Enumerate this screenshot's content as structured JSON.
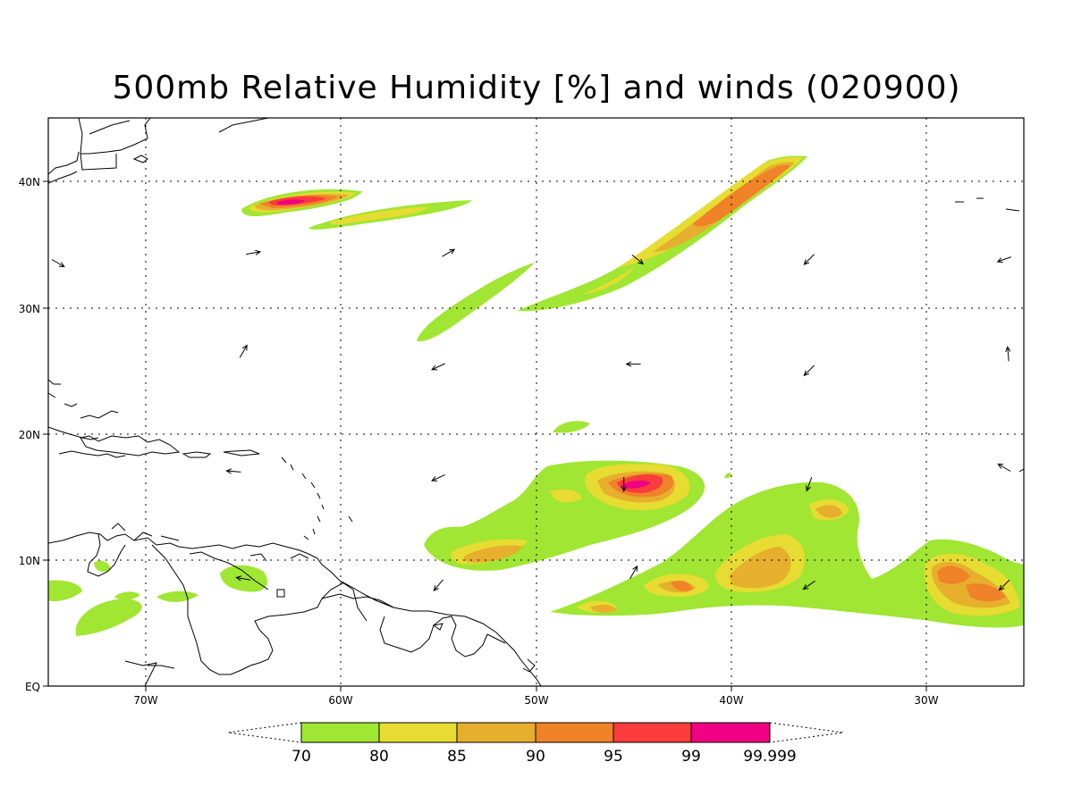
{
  "title": "500mb Relative Humidity [%] and winds (020900)",
  "map": {
    "lat_range": [
      0,
      45
    ],
    "lon_range": [
      -75,
      -25
    ],
    "lat_ticks": [
      {
        "lat": 40,
        "label": "40N"
      },
      {
        "lat": 30,
        "label": "30N"
      },
      {
        "lat": 20,
        "label": "20N"
      },
      {
        "lat": 10,
        "label": "10N"
      },
      {
        "lat": 0,
        "label": "EQ"
      }
    ],
    "lon_ticks": [
      {
        "lon": -70,
        "label": "70W"
      },
      {
        "lon": -60,
        "label": "60W"
      },
      {
        "lon": -50,
        "label": "50W"
      },
      {
        "lon": -40,
        "label": "40W"
      },
      {
        "lon": -30,
        "label": "30W"
      }
    ],
    "gridlines": true
  },
  "colorbar": {
    "levels": [
      "70",
      "80",
      "85",
      "90",
      "95",
      "99",
      "99.999"
    ],
    "colors": [
      "#a0e632",
      "#e6dc32",
      "#e6af2d",
      "#f08228",
      "#fa3c3c",
      "#f00082"
    ]
  },
  "winds": [
    {
      "lat": 33.5,
      "lon": -74.5,
      "dir": 120
    },
    {
      "lat": 34.3,
      "lon": -64.5,
      "dir": 80
    },
    {
      "lat": 34.3,
      "lon": -54.5,
      "dir": 60
    },
    {
      "lat": 33.8,
      "lon": -44.8,
      "dir": 130
    },
    {
      "lat": 33.8,
      "lon": -36.0,
      "dir": 225
    },
    {
      "lat": 33.8,
      "lon": -26.0,
      "dir": 250
    },
    {
      "lat": 26.5,
      "lon": -65.0,
      "dir": 30
    },
    {
      "lat": 25.3,
      "lon": -55.0,
      "dir": 245
    },
    {
      "lat": 25.5,
      "lon": -45.0,
      "dir": 270
    },
    {
      "lat": 25.0,
      "lon": -36.0,
      "dir": 225
    },
    {
      "lat": 26.3,
      "lon": -25.8,
      "dir": 355
    },
    {
      "lat": 17.0,
      "lon": -65.5,
      "dir": 275
    },
    {
      "lat": 16.5,
      "lon": -55.0,
      "dir": 245
    },
    {
      "lat": 16.0,
      "lon": -45.5,
      "dir": 180
    },
    {
      "lat": 16.0,
      "lon": -36.0,
      "dir": 200
    },
    {
      "lat": 17.3,
      "lon": -26.0,
      "dir": 300
    },
    {
      "lat": 8.5,
      "lon": -65.0,
      "dir": 280
    },
    {
      "lat": 8.0,
      "lon": -55.0,
      "dir": 220
    },
    {
      "lat": 9.0,
      "lon": -45.0,
      "dir": 30
    },
    {
      "lat": 8.0,
      "lon": -36.0,
      "dir": 235
    },
    {
      "lat": 8.0,
      "lon": -26.0,
      "dir": 225
    }
  ]
}
